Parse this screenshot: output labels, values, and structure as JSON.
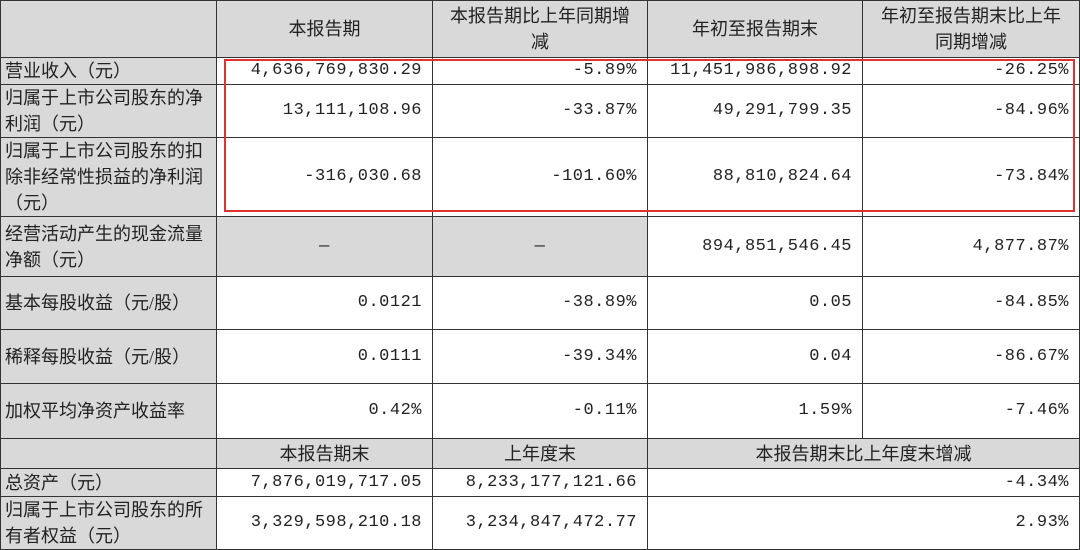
{
  "header": [
    "",
    "本报告期",
    "本报告期比上年同期增减",
    "年初至报告期末",
    "年初至报告期末比上年同期增减"
  ],
  "rows": [
    {
      "label": "营业收入（元）",
      "v": [
        "4,636,769,830.29",
        "-5.89%",
        "11,451,986,898.92",
        "-26.25%"
      ]
    },
    {
      "label": "归属于上市公司股东的净利润（元）",
      "v": [
        "13,111,108.96",
        "-33.87%",
        "49,291,799.35",
        "-84.96%"
      ]
    },
    {
      "label": "归属于上市公司股东的扣除非经常性损益的净利润（元）",
      "v": [
        "-316,030.68",
        "-101.60%",
        "88,810,824.64",
        "-73.84%"
      ]
    },
    {
      "label": "经营活动产生的现金流量净额（元）",
      "v": [
        "—",
        "—",
        "894,851,546.45",
        "4,877.87%"
      ]
    },
    {
      "label": "基本每股收益（元/股）",
      "v": [
        "0.0121",
        "-38.89%",
        "0.05",
        "-84.85%"
      ]
    },
    {
      "label": "稀释每股收益（元/股）",
      "v": [
        "0.0111",
        "-39.34%",
        "0.04",
        "-86.67%"
      ]
    },
    {
      "label": "加权平均净资产收益率",
      "v": [
        "0.42%",
        "-0.11%",
        "1.59%",
        "-7.46%"
      ]
    }
  ],
  "subheader": [
    "",
    "本报告期末",
    "上年度末",
    "本报告期末比上年度末增减"
  ],
  "rows2": [
    {
      "label": "总资产（元）",
      "v": [
        "7,876,019,717.05",
        "8,233,177,121.66",
        "-4.34%"
      ]
    },
    {
      "label": "归属于上市公司股东的所有者权益（元）",
      "v": [
        "3,329,598,210.18",
        "3,234,847,472.77",
        "2.93%"
      ]
    }
  ],
  "colors": {
    "highlight_box": "#e03030",
    "header_fill": "#d9d9d9"
  }
}
